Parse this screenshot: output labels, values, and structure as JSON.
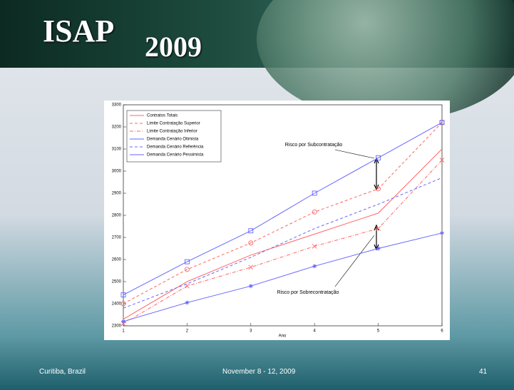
{
  "slide": {
    "header": {
      "title": "ISAP",
      "subscript": "2009"
    },
    "footer": {
      "left": "Curitiba, Brazil",
      "center": "November 8 - 12, 2009",
      "right": "41"
    }
  },
  "chart_data": {
    "type": "line",
    "xlabel": "Ano",
    "x": [
      1,
      2,
      3,
      4,
      5,
      6
    ],
    "xlim": [
      1,
      6
    ],
    "xticks": [
      1,
      2,
      3,
      4,
      5,
      6
    ],
    "ylim": [
      2300,
      3300
    ],
    "yticks": [
      2300,
      2400,
      2500,
      2600,
      2700,
      2800,
      2900,
      3000,
      3100,
      3200,
      3300
    ],
    "legend": "upper left",
    "annotations": [
      "Risco por Subcontratação",
      "Risco por Sobrecontratação"
    ],
    "series": [
      {
        "name": "Contratos Totais",
        "color": "#ff6666",
        "linestyle": "solid",
        "marker": "none",
        "values": [
          2330,
          2500,
          2620,
          2715,
          2810,
          3100
        ]
      },
      {
        "name": "Limite Contratação Superior",
        "color": "#ff6666",
        "linestyle": "dashed",
        "marker": "circle",
        "values": [
          2400,
          2555,
          2675,
          2815,
          2920,
          3220
        ]
      },
      {
        "name": "Limite Contratação Inferior",
        "color": "#ff6666",
        "linestyle": "dashdot",
        "marker": "x",
        "values": [
          2310,
          2480,
          2565,
          2660,
          2740,
          3050
        ]
      },
      {
        "name": "Demanda Cenário Otimista",
        "color": "#6666ff",
        "linestyle": "solid",
        "marker": "square",
        "values": [
          2440,
          2590,
          2730,
          2900,
          3060,
          3220
        ]
      },
      {
        "name": "Demanda Cenário Referência",
        "color": "#6666ff",
        "linestyle": "dashed",
        "marker": "none",
        "values": [
          2380,
          2490,
          2610,
          2740,
          2850,
          2970
        ]
      },
      {
        "name": "Demanda Cenário Pessimista",
        "color": "#6666ff",
        "linestyle": "solid",
        "marker": "star",
        "values": [
          2320,
          2405,
          2480,
          2570,
          2650,
          2720
        ]
      }
    ]
  }
}
